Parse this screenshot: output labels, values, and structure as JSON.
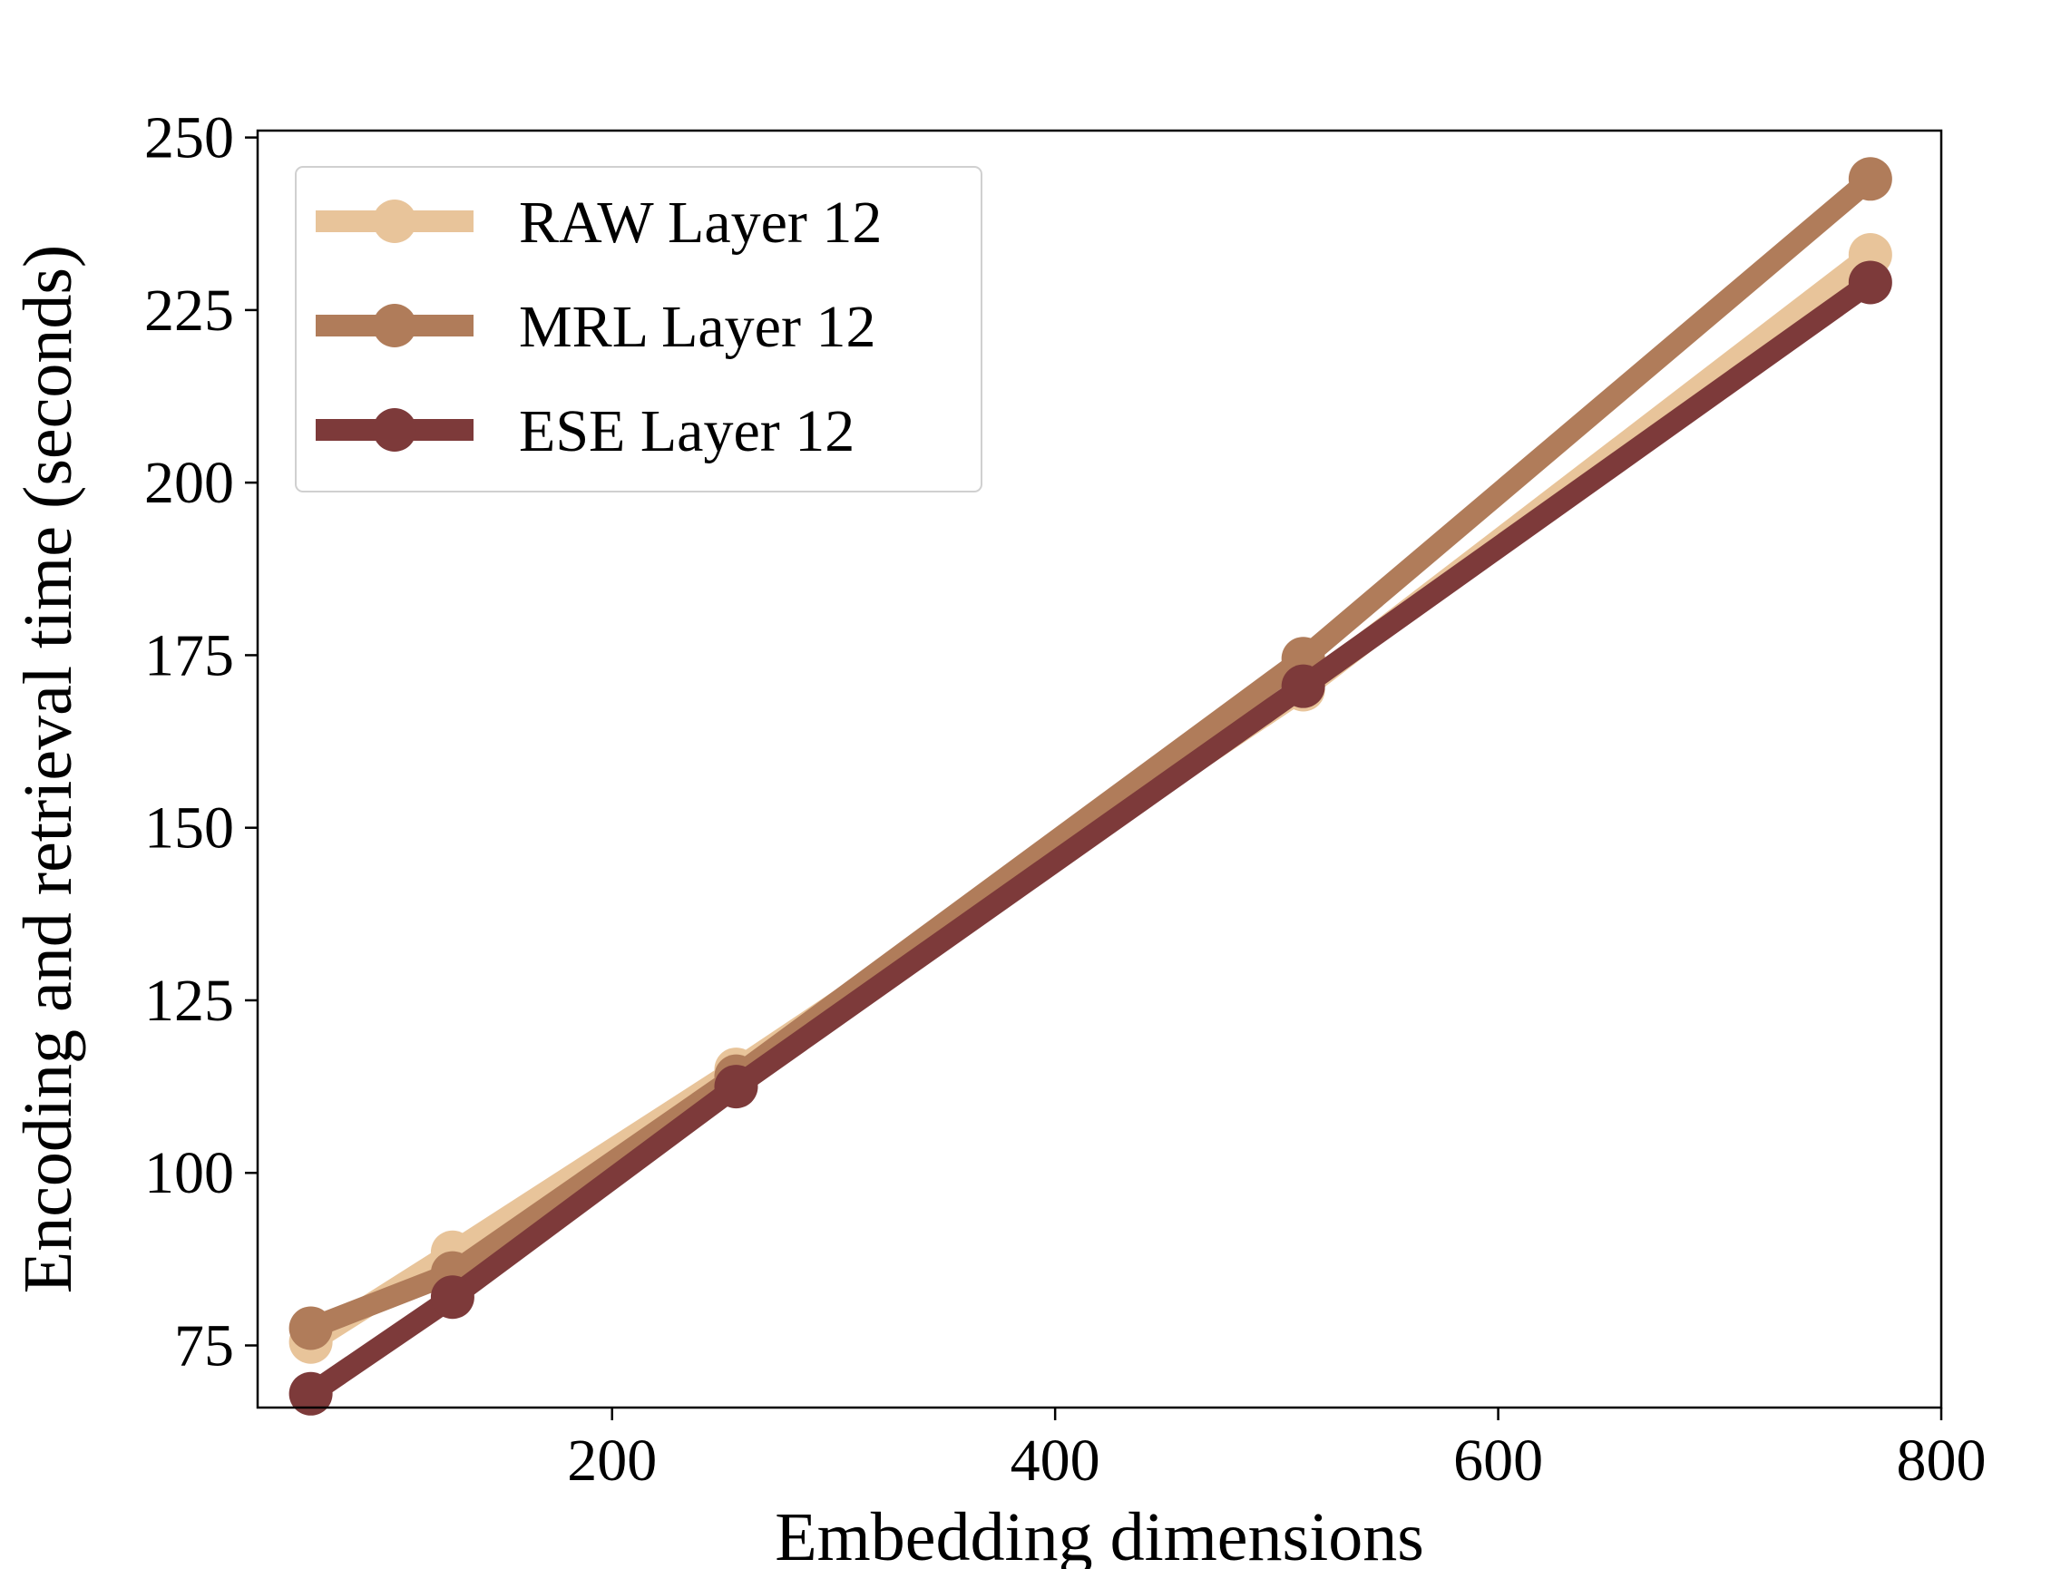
{
  "chart_data": {
    "type": "line",
    "title": "",
    "xlabel": "Embedding dimensions",
    "ylabel": "Encoding and retrieval time (seconds)",
    "xlim": [
      40,
      800
    ],
    "ylim": [
      66,
      251
    ],
    "xticks": [
      200,
      400,
      600,
      800
    ],
    "yticks": [
      75,
      100,
      125,
      150,
      175,
      200,
      225,
      250
    ],
    "grid": false,
    "legend_position": "top-left",
    "x": [
      64,
      128,
      256,
      512,
      768
    ],
    "series": [
      {
        "name": "RAW Layer 12",
        "color": "#e8c49a",
        "values": [
          75.5,
          88.5,
          115,
          170,
          233
        ]
      },
      {
        "name": "MRL Layer 12",
        "color": "#b07c5a",
        "values": [
          77.5,
          85.5,
          114,
          174.5,
          244
        ]
      },
      {
        "name": "ESE Layer 12",
        "color": "#7d3a3a",
        "values": [
          68,
          82,
          112.5,
          170.5,
          229
        ]
      }
    ]
  }
}
